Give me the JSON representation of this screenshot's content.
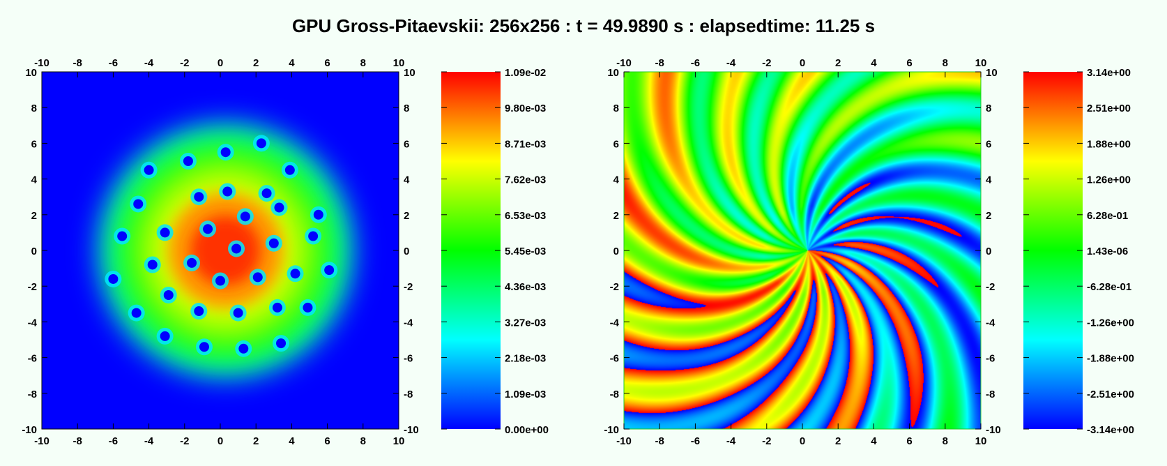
{
  "title": "GPU Gross-Pitaevskii: 256x256 : t = 49.9890 s : elapsedtime: 11.25 s",
  "chart_data": [
    {
      "type": "heatmap",
      "name": "density",
      "xlim": [
        -10,
        10
      ],
      "ylim": [
        -10,
        10
      ],
      "xticks": [
        -10,
        -8,
        -6,
        -4,
        -2,
        0,
        2,
        4,
        6,
        8,
        10
      ],
      "yticks": [
        -10,
        -8,
        -6,
        -4,
        -2,
        0,
        2,
        4,
        6,
        8,
        10
      ],
      "colorbar": {
        "range": [
          0.0,
          0.0109
        ],
        "tick_labels": [
          "1.09e-02",
          "9.80e-03",
          "8.71e-03",
          "7.62e-03",
          "6.53e-03",
          "5.45e-03",
          "4.36e-03",
          "3.27e-03",
          "2.18e-03",
          "1.09e-03",
          "0.00e+00"
        ]
      },
      "cloud": {
        "center": [
          0.3,
          0
        ],
        "radius": 7.0
      },
      "vortex_cores": [
        [
          2.3,
          6.0
        ],
        [
          -4.0,
          4.5
        ],
        [
          -1.8,
          5.0
        ],
        [
          0.3,
          5.5
        ],
        [
          3.9,
          4.5
        ],
        [
          -1.2,
          3.0
        ],
        [
          0.4,
          3.3
        ],
        [
          2.6,
          3.2
        ],
        [
          5.5,
          2.0
        ],
        [
          -4.6,
          2.6
        ],
        [
          -3.1,
          1.0
        ],
        [
          -0.7,
          1.2
        ],
        [
          1.4,
          1.9
        ],
        [
          3.3,
          2.4
        ],
        [
          -5.5,
          0.8
        ],
        [
          3.0,
          0.4
        ],
        [
          5.2,
          0.8
        ],
        [
          0.9,
          0.1
        ],
        [
          -1.6,
          -0.7
        ],
        [
          -3.8,
          -0.8
        ],
        [
          6.1,
          -1.1
        ],
        [
          -6.0,
          -1.6
        ],
        [
          0.0,
          -1.7
        ],
        [
          2.1,
          -1.5
        ],
        [
          4.2,
          -1.3
        ],
        [
          -2.9,
          -2.5
        ],
        [
          4.9,
          -3.2
        ],
        [
          -4.7,
          -3.5
        ],
        [
          -1.2,
          -3.4
        ],
        [
          1.0,
          -3.5
        ],
        [
          3.2,
          -3.2
        ],
        [
          -3.1,
          -4.8
        ],
        [
          -0.9,
          -5.4
        ],
        [
          1.3,
          -5.5
        ],
        [
          3.4,
          -5.2
        ]
      ]
    },
    {
      "type": "heatmap",
      "name": "phase",
      "xlim": [
        -10,
        10
      ],
      "ylim": [
        -10,
        10
      ],
      "xticks": [
        -10,
        -8,
        -6,
        -4,
        -2,
        0,
        2,
        4,
        6,
        8,
        10
      ],
      "yticks": [
        -10,
        -8,
        -6,
        -4,
        -2,
        0,
        2,
        4,
        6,
        8,
        10
      ],
      "colorbar": {
        "range": [
          -3.14,
          3.14
        ],
        "tick_labels": [
          "3.14e+00",
          "2.51e+00",
          "1.88e+00",
          "1.26e+00",
          "6.28e-01",
          "1.43e-06",
          "-6.28e-01",
          "-1.26e+00",
          "-1.88e+00",
          "-2.51e+00",
          "-3.14e+00"
        ]
      },
      "center_vortex": [
        0.3,
        0
      ],
      "arms": 28
    }
  ],
  "colormap": [
    "#0000ff",
    "#00ffff",
    "#00ff00",
    "#ffff00",
    "#ff0000"
  ]
}
